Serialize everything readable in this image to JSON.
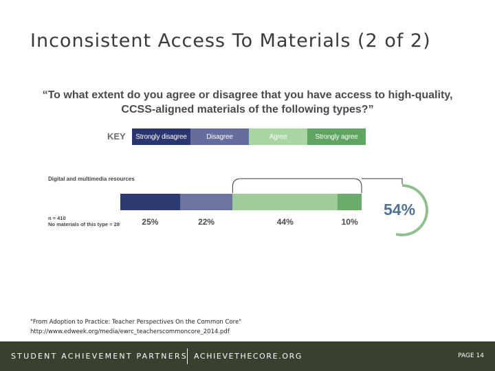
{
  "slide": {
    "title": "Inconsistent Access To Materials (2 of 2)",
    "citation_line1": "\"From Adoption to Practice: Teacher Perspectives On the Common Core\"",
    "citation_line2": "http://www.edweek.org/media/ewrc_teacherscommoncore_2014.pdf"
  },
  "footer": {
    "org": "STUDENT ACHIEVEMENT PARTNERS",
    "site": "ACHIEVETHECORE.ORG",
    "page": "PAGE 14",
    "background": "#38402f"
  },
  "chart_data": {
    "type": "bar",
    "orientation": "horizontal-stacked",
    "title_line1": "“To what extent do you agree or disagree that you have access to high-quality,",
    "title_line2": "CCSS-aligned materials of the following types?”",
    "key_label": "KEY",
    "categories": [
      "Digital and multimedia resources"
    ],
    "series": [
      {
        "name": "Strongly disagree",
        "values": [
          25
        ],
        "label": "25%",
        "color": "#2e3a72",
        "key_color": "#2b3570"
      },
      {
        "name": "Disagree",
        "values": [
          22
        ],
        "label": "22%",
        "color": "#6e739f",
        "key_color": "#666c9c"
      },
      {
        "name": "Agree",
        "values": [
          44
        ],
        "label": "44%",
        "color": "#9fcc9b",
        "key_color": "#a9d4a4"
      },
      {
        "name": "Strongly agree",
        "values": [
          10
        ],
        "label": "10%",
        "color": "#6aad6b",
        "key_color": "#5fa461"
      }
    ],
    "notes": [
      "n = 410",
      "No materials of this type = 28"
    ],
    "combined": {
      "label": "54%",
      "value": 54,
      "series": [
        "Agree",
        "Strongly agree"
      ],
      "color": "#8fbf8f"
    }
  }
}
